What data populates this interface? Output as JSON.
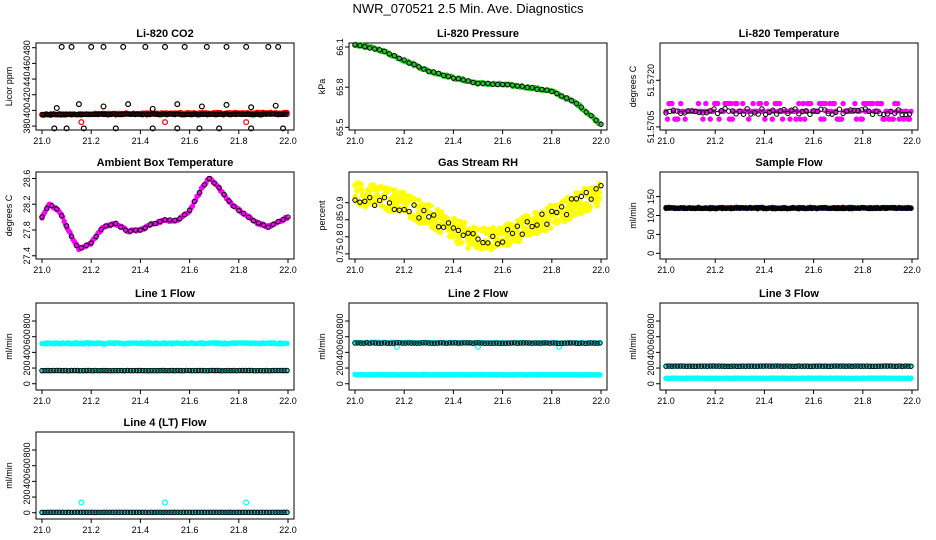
{
  "page": {
    "title": "NWR_070521  2.5 Min. Ave. Diagnostics"
  },
  "colors": {
    "black": "#000000",
    "red": "#ff0000",
    "green": "#22cc22",
    "magenta": "#ff00ff",
    "yellow": "#ffff00",
    "cyan": "#00ffff",
    "blue": "#0000cc"
  },
  "chart_data": [
    {
      "id": "co2",
      "type": "scatter",
      "title": "Li-820 CO2",
      "ylabel": "Licor ppm",
      "xlim": [
        21.0,
        22.0
      ],
      "ylim": [
        375,
        486
      ],
      "yticks": [
        380,
        400,
        420,
        440,
        460,
        480
      ],
      "xticks": [
        "21.0",
        "21.2",
        "21.4",
        "21.6",
        "21.8",
        "22.0"
      ],
      "series": [
        {
          "name": "red",
          "color": "red",
          "trend": [
            [
              21.0,
              394
            ],
            [
              21.3,
              396
            ],
            [
              22.0,
              397
            ]
          ],
          "noise": 0.8,
          "extra": [
            [
              21.16,
              385
            ],
            [
              21.5,
              385
            ],
            [
              21.83,
              385
            ]
          ]
        },
        {
          "name": "black",
          "color": "black",
          "outline": true,
          "trend": [
            [
              21.0,
              395
            ],
            [
              22.0,
              395
            ]
          ],
          "noise": 0.6,
          "extra": [
            [
              21.08,
              481
            ],
            [
              21.12,
              481
            ],
            [
              21.2,
              481
            ],
            [
              21.25,
              481
            ],
            [
              21.33,
              481
            ],
            [
              21.42,
              481
            ],
            [
              21.5,
              481
            ],
            [
              21.58,
              481
            ],
            [
              21.67,
              481
            ],
            [
              21.75,
              481
            ],
            [
              21.83,
              481
            ],
            [
              21.92,
              481
            ],
            [
              21.96,
              481
            ],
            [
              21.05,
              377
            ],
            [
              21.1,
              377
            ],
            [
              21.17,
              377
            ],
            [
              21.3,
              377
            ],
            [
              21.45,
              377
            ],
            [
              21.55,
              377
            ],
            [
              21.64,
              377
            ],
            [
              21.72,
              377
            ],
            [
              21.85,
              377
            ],
            [
              21.98,
              377
            ],
            [
              21.06,
              403
            ],
            [
              21.15,
              408
            ],
            [
              21.25,
              405
            ],
            [
              21.35,
              408
            ],
            [
              21.45,
              402
            ],
            [
              21.55,
              408
            ],
            [
              21.65,
              405
            ],
            [
              21.75,
              407
            ],
            [
              21.85,
              404
            ],
            [
              21.95,
              406
            ]
          ]
        }
      ]
    },
    {
      "id": "pressure",
      "type": "scatter",
      "title": "Li-820 Pressure",
      "ylabel": "kPa",
      "xlim": [
        21.0,
        22.0
      ],
      "ylim": [
        65.48,
        66.13
      ],
      "yticks": [
        65.5,
        65.8,
        66.1
      ],
      "xticks": [
        "21.0",
        "21.2",
        "21.4",
        "21.6",
        "21.8",
        "22.0"
      ],
      "series": [
        {
          "name": "green",
          "color": "green",
          "trend": [
            [
              21.0,
              66.12
            ],
            [
              21.1,
              66.08
            ],
            [
              21.2,
              66.0
            ],
            [
              21.3,
              65.92
            ],
            [
              21.4,
              65.87
            ],
            [
              21.5,
              65.83
            ],
            [
              21.6,
              65.82
            ],
            [
              21.7,
              65.8
            ],
            [
              21.8,
              65.77
            ],
            [
              21.9,
              65.68
            ],
            [
              21.95,
              65.6
            ],
            [
              22.0,
              65.52
            ]
          ],
          "noise": 0.008
        },
        {
          "name": "black",
          "color": "black",
          "outline": true,
          "trend": [
            [
              21.0,
              66.12
            ],
            [
              21.1,
              66.08
            ],
            [
              21.2,
              66.0
            ],
            [
              21.3,
              65.92
            ],
            [
              21.4,
              65.87
            ],
            [
              21.5,
              65.83
            ],
            [
              21.6,
              65.82
            ],
            [
              21.7,
              65.8
            ],
            [
              21.8,
              65.77
            ],
            [
              21.9,
              65.68
            ],
            [
              21.95,
              65.6
            ],
            [
              22.0,
              65.52
            ]
          ],
          "noise": 0.004,
          "step": 0.02
        }
      ]
    },
    {
      "id": "temp820",
      "type": "scatter",
      "title": "Li-820 Temperature",
      "ylabel": "degrees C",
      "xlim": [
        21.0,
        22.0
      ],
      "ylim": [
        51.5704,
        51.5732
      ],
      "yticks": [
        51.5705,
        51.572
      ],
      "yticklabels": [
        "51.5705",
        "51.5720"
      ],
      "xticks": [
        "21.0",
        "21.2",
        "21.4",
        "21.6",
        "21.8",
        "22.0"
      ],
      "series": [
        {
          "name": "magenta",
          "color": "magenta",
          "outline": true,
          "trend": [
            [
              21.0,
              51.571
            ],
            [
              22.0,
              51.571
            ]
          ],
          "noise": 0.00025,
          "stepY": 0.00025
        },
        {
          "name": "black",
          "color": "black",
          "outline": true,
          "trend": [
            [
              21.0,
              51.571
            ],
            [
              22.0,
              51.571
            ]
          ],
          "noise": 0.0001,
          "step": 0.015
        }
      ]
    },
    {
      "id": "ambient",
      "type": "scatter",
      "title": "Ambient Box Temperature",
      "ylabel": "degrees C",
      "xlim": [
        21.0,
        22.0
      ],
      "ylim": [
        27.35,
        28.7
      ],
      "yticks": [
        27.4,
        27.8,
        28.2,
        28.6
      ],
      "xticks": [
        "21.0",
        "21.2",
        "21.4",
        "21.6",
        "21.8",
        "22.0"
      ],
      "series": [
        {
          "name": "magenta",
          "color": "magenta",
          "trend": [
            [
              21.0,
              28.0
            ],
            [
              21.03,
              28.2
            ],
            [
              21.07,
              28.1
            ],
            [
              21.12,
              27.7
            ],
            [
              21.15,
              27.5
            ],
            [
              21.2,
              27.6
            ],
            [
              21.25,
              27.85
            ],
            [
              21.3,
              27.9
            ],
            [
              21.35,
              27.78
            ],
            [
              21.4,
              27.8
            ],
            [
              21.45,
              27.9
            ],
            [
              21.5,
              27.95
            ],
            [
              21.55,
              27.95
            ],
            [
              21.6,
              28.1
            ],
            [
              21.65,
              28.45
            ],
            [
              21.68,
              28.6
            ],
            [
              21.72,
              28.45
            ],
            [
              21.77,
              28.2
            ],
            [
              21.82,
              28.05
            ],
            [
              21.88,
              27.9
            ],
            [
              21.92,
              27.85
            ],
            [
              22.0,
              28.0
            ]
          ],
          "noise": 0.015
        },
        {
          "name": "black",
          "color": "black",
          "outline": true,
          "trend": [
            [
              21.0,
              28.0
            ],
            [
              21.03,
              28.2
            ],
            [
              21.07,
              28.1
            ],
            [
              21.12,
              27.7
            ],
            [
              21.15,
              27.5
            ],
            [
              21.2,
              27.6
            ],
            [
              21.25,
              27.85
            ],
            [
              21.3,
              27.9
            ],
            [
              21.35,
              27.78
            ],
            [
              21.4,
              27.8
            ],
            [
              21.45,
              27.9
            ],
            [
              21.5,
              27.95
            ],
            [
              21.55,
              27.95
            ],
            [
              21.6,
              28.1
            ],
            [
              21.65,
              28.45
            ],
            [
              21.68,
              28.6
            ],
            [
              21.72,
              28.45
            ],
            [
              21.77,
              28.2
            ],
            [
              21.82,
              28.05
            ],
            [
              21.88,
              27.9
            ],
            [
              21.92,
              27.85
            ],
            [
              22.0,
              28.0
            ]
          ],
          "noise": 0.01,
          "step": 0.02
        }
      ]
    },
    {
      "id": "rh",
      "type": "scatter",
      "title": "Gas Stream RH",
      "ylabel": "percent",
      "xlim": [
        21.0,
        22.0
      ],
      "ylim": [
        0.735,
        0.99
      ],
      "yticks": [
        0.75,
        0.8,
        0.85,
        0.9
      ],
      "xticks": [
        "21.0",
        "21.2",
        "21.4",
        "21.6",
        "21.8",
        "22.0"
      ],
      "series": [
        {
          "name": "yellow",
          "color": "yellow",
          "outline": true,
          "trend": [
            [
              21.0,
              0.93
            ],
            [
              21.2,
              0.9
            ],
            [
              21.4,
              0.82
            ],
            [
              21.5,
              0.79
            ],
            [
              21.6,
              0.8
            ],
            [
              21.8,
              0.86
            ],
            [
              22.0,
              0.93
            ]
          ],
          "noise": 0.035,
          "density": 3
        },
        {
          "name": "black",
          "color": "black",
          "outline": true,
          "trend": [
            [
              21.0,
              0.92
            ],
            [
              21.2,
              0.89
            ],
            [
              21.4,
              0.83
            ],
            [
              21.5,
              0.78
            ],
            [
              21.6,
              0.8
            ],
            [
              21.8,
              0.86
            ],
            [
              22.0,
              0.94
            ]
          ],
          "noise": 0.02,
          "step": 0.02
        }
      ]
    },
    {
      "id": "sampleflow",
      "type": "scatter",
      "title": "Sample Flow",
      "ylabel": "ml/min",
      "xlim": [
        21.0,
        22.0
      ],
      "ylim": [
        -15,
        215
      ],
      "yticks": [
        0,
        50,
        100,
        150
      ],
      "xticks": [
        "21.0",
        "21.2",
        "21.4",
        "21.6",
        "21.8",
        "22.0"
      ],
      "series": [
        {
          "name": "blue",
          "color": "blue",
          "trend": [
            [
              21.0,
              120
            ],
            [
              22.0,
              120
            ]
          ],
          "noise": 1.5
        },
        {
          "name": "black",
          "color": "black",
          "trend": [
            [
              21.0,
              119
            ],
            [
              22.0,
              119
            ]
          ],
          "noise": 1.0,
          "step": 0.012
        }
      ]
    },
    {
      "id": "line1",
      "type": "scatter",
      "title": "Line 1 Flow",
      "ylabel": "ml/min",
      "xlim": [
        21.0,
        22.0
      ],
      "ylim": [
        -80,
        1030
      ],
      "yticks": [
        0,
        200,
        400,
        600,
        800
      ],
      "xticks": [
        "21.0",
        "21.2",
        "21.4",
        "21.6",
        "21.8",
        "22.0"
      ],
      "series": [
        {
          "name": "cyan-high",
          "color": "cyan",
          "trend": [
            [
              21.0,
              515
            ],
            [
              22.0,
              515
            ]
          ],
          "noise": 7
        },
        {
          "name": "cyan-low",
          "color": "cyan",
          "trend": [
            [
              21.0,
              165
            ],
            [
              22.0,
              165
            ]
          ],
          "noise": 4
        },
        {
          "name": "black",
          "color": "black",
          "outline": true,
          "trend": [
            [
              21.0,
              168
            ],
            [
              22.0,
              168
            ]
          ],
          "noise": 2,
          "step": 0.012
        }
      ]
    },
    {
      "id": "line2",
      "type": "scatter",
      "title": "Line 2 Flow",
      "ylabel": "ml/min",
      "xlim": [
        21.0,
        22.0
      ],
      "ylim": [
        -80,
        1030
      ],
      "yticks": [
        0,
        200,
        400,
        600,
        800
      ],
      "xticks": [
        "21.0",
        "21.2",
        "21.4",
        "21.6",
        "21.8",
        "22.0"
      ],
      "series": [
        {
          "name": "cyan-high",
          "color": "cyan",
          "trend": [
            [
              21.0,
              525
            ],
            [
              22.0,
              520
            ]
          ],
          "noise": 5,
          "extra": [
            [
              21.17,
              470
            ],
            [
              21.5,
              470
            ],
            [
              21.83,
              470
            ]
          ]
        },
        {
          "name": "cyan-low",
          "color": "cyan",
          "trend": [
            [
              21.0,
              115
            ],
            [
              22.0,
              115
            ]
          ],
          "noise": 3
        },
        {
          "name": "black",
          "color": "black",
          "outline": true,
          "trend": [
            [
              21.0,
              520
            ],
            [
              22.0,
              518
            ]
          ],
          "noise": 3,
          "step": 0.012
        }
      ]
    },
    {
      "id": "line3",
      "type": "scatter",
      "title": "Line 3 Flow",
      "ylabel": "ml/min",
      "xlim": [
        21.0,
        22.0
      ],
      "ylim": [
        -80,
        1030
      ],
      "yticks": [
        0,
        200,
        400,
        600,
        800
      ],
      "xticks": [
        "21.0",
        "21.2",
        "21.4",
        "21.6",
        "21.8",
        "22.0"
      ],
      "series": [
        {
          "name": "cyan-high",
          "color": "cyan",
          "trend": [
            [
              21.0,
              225
            ],
            [
              22.0,
              225
            ]
          ],
          "noise": 3
        },
        {
          "name": "cyan-low",
          "color": "cyan",
          "trend": [
            [
              21.0,
              70
            ],
            [
              22.0,
              70
            ]
          ],
          "noise": 2
        },
        {
          "name": "black",
          "color": "black",
          "outline": true,
          "trend": [
            [
              21.0,
              224
            ],
            [
              22.0,
              224
            ]
          ],
          "noise": 2,
          "step": 0.012
        }
      ]
    },
    {
      "id": "line4",
      "type": "scatter",
      "title": "Line 4 (LT) Flow",
      "ylabel": "ml/min",
      "xlim": [
        21.0,
        22.0
      ],
      "ylim": [
        -80,
        1030
      ],
      "yticks": [
        0,
        200,
        400,
        600,
        800
      ],
      "xticks": [
        "21.0",
        "21.2",
        "21.4",
        "21.6",
        "21.8",
        "22.0"
      ],
      "series": [
        {
          "name": "cyan",
          "color": "cyan",
          "trend": [
            [
              21.0,
              5
            ],
            [
              22.0,
              5
            ]
          ],
          "noise": 1.5,
          "extra": [
            [
              21.16,
              130
            ],
            [
              21.5,
              130
            ],
            [
              21.83,
              130
            ]
          ]
        },
        {
          "name": "black",
          "color": "black",
          "outline": true,
          "trend": [
            [
              21.0,
              5
            ],
            [
              22.0,
              5
            ]
          ],
          "noise": 1,
          "step": 0.012
        }
      ]
    }
  ]
}
